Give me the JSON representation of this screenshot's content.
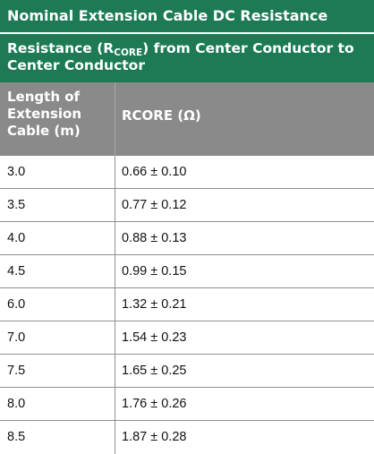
{
  "table": {
    "title": "Nominal Extension Cable DC Resistance",
    "subtitle": {
      "prefix": "Resistance (R",
      "subscript": "CORE",
      "suffix": ") from Center Conductor to Center Conductor"
    },
    "headers": {
      "length_line1": "Length of",
      "length_line2": "Extension",
      "length_line3": "Cable (m)",
      "rcore": "RCORE (Ω)"
    },
    "rows": [
      {
        "length": "3.0",
        "rcore": "0.66 ± 0.10"
      },
      {
        "length": "3.5",
        "rcore": "0.77 ± 0.12"
      },
      {
        "length": "4.0",
        "rcore": "0.88 ± 0.13"
      },
      {
        "length": "4.5",
        "rcore": "0.99 ± 0.15"
      },
      {
        "length": "6.0",
        "rcore": "1.32 ± 0.21"
      },
      {
        "length": "7.0",
        "rcore": "1.54 ± 0.23"
      },
      {
        "length": "7.5",
        "rcore": "1.65 ± 0.25"
      },
      {
        "length": "8.0",
        "rcore": "1.76 ± 0.26"
      },
      {
        "length": "8.5",
        "rcore": "1.87 ± 0.28"
      }
    ]
  },
  "colors": {
    "title_background": "#1d7a55",
    "header_background": "#8a8a8a",
    "row_divider": "#8f8f8f"
  }
}
